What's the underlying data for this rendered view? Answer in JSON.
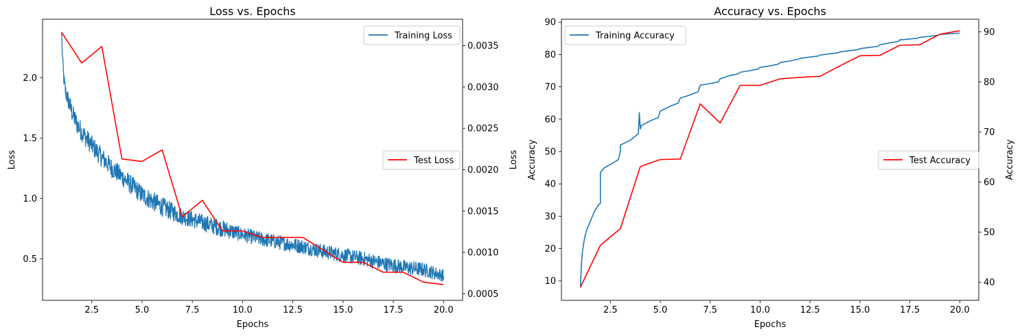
{
  "chart_data": [
    {
      "type": "line",
      "title": "Loss vs. Epochs",
      "xlabel": "Epochs",
      "ylabel": "Loss",
      "ylabel_right": "Loss",
      "xlim": [
        0.05,
        20.95
      ],
      "ylim": [
        0.155,
        2.485
      ],
      "ylim_right": [
        0.00042,
        0.00382
      ],
      "x_ticks": [
        2.5,
        5.0,
        7.5,
        10.0,
        12.5,
        15.0,
        17.5,
        20.0
      ],
      "x_tick_labels": [
        "2.5",
        "5.0",
        "7.5",
        "10.0",
        "12.5",
        "15.0",
        "17.5",
        "20.0"
      ],
      "y_ticks": [
        0.5,
        1.0,
        1.5,
        2.0
      ],
      "y_tick_labels": [
        "0.5",
        "1.0",
        "1.5",
        "2.0"
      ],
      "y_ticks_right": [
        0.0005,
        0.001,
        0.0015,
        0.002,
        0.0025,
        0.003,
        0.0035
      ],
      "y_tick_labels_right": [
        "0.0005",
        "0.0010",
        "0.0015",
        "0.0020",
        "0.0025",
        "0.0030",
        "0.0035"
      ],
      "grid": false,
      "series": [
        {
          "name": "Training Loss",
          "axis": "left",
          "color": "#1f77b4",
          "legend_position": "upper right",
          "x": [
            1.0,
            1.02,
            1.05,
            1.1,
            1.2,
            1.35,
            1.5,
            1.75,
            2.0,
            2.5,
            3.0,
            3.5,
            4.0,
            5.0,
            6.0,
            7.0,
            8.0,
            9.0,
            10.0,
            11.0,
            12.0,
            13.0,
            14.0,
            15.0,
            16.0,
            17.0,
            18.0,
            19.0,
            20.0
          ],
          "values": [
            2.38,
            2.25,
            2.15,
            2.0,
            1.88,
            1.8,
            1.72,
            1.62,
            1.55,
            1.44,
            1.34,
            1.25,
            1.18,
            1.03,
            0.93,
            0.85,
            0.8,
            0.75,
            0.7,
            0.66,
            0.63,
            0.6,
            0.56,
            0.53,
            0.5,
            0.46,
            0.43,
            0.41,
            0.36
          ],
          "noise_amplitude": [
            0.0,
            0.04,
            0.05,
            0.06,
            0.07,
            0.08,
            0.08,
            0.08,
            0.08,
            0.08,
            0.08,
            0.08,
            0.08,
            0.08,
            0.08,
            0.07,
            0.07,
            0.07,
            0.06,
            0.06,
            0.06,
            0.06,
            0.06,
            0.06,
            0.06,
            0.06,
            0.06,
            0.06,
            0.05
          ]
        },
        {
          "name": "Test Loss",
          "axis": "right",
          "color": "#ff0000",
          "legend_position": "center right",
          "x": [
            1,
            2,
            3,
            4,
            5,
            6,
            7,
            8,
            9,
            10,
            11,
            12,
            13,
            14,
            15,
            16,
            17,
            18,
            19,
            20
          ],
          "values": [
            0.00366,
            0.00329,
            0.00349,
            0.00213,
            0.0021,
            0.00224,
            0.00143,
            0.00163,
            0.00126,
            0.00126,
            0.00118,
            0.00118,
            0.00118,
            0.00103,
            0.00088,
            0.00088,
            0.00076,
            0.00076,
            0.00064,
            0.00061
          ]
        }
      ]
    },
    {
      "type": "line",
      "title": "Accuracy vs. Epochs",
      "xlabel": "Epochs",
      "ylabel": "Accuracy",
      "ylabel_right": "Accuracy",
      "xlim": [
        0.05,
        20.95
      ],
      "ylim": [
        4.0,
        90.9
      ],
      "ylim_right": [
        36.4,
        92.5
      ],
      "x_ticks": [
        2.5,
        5.0,
        7.5,
        10.0,
        12.5,
        15.0,
        17.5,
        20.0
      ],
      "x_tick_labels": [
        "2.5",
        "5.0",
        "7.5",
        "10.0",
        "12.5",
        "15.0",
        "17.5",
        "20.0"
      ],
      "y_ticks": [
        10,
        20,
        30,
        40,
        50,
        60,
        70,
        80,
        90
      ],
      "y_tick_labels": [
        "10",
        "20",
        "30",
        "40",
        "50",
        "60",
        "70",
        "80",
        "90"
      ],
      "y_ticks_right": [
        40,
        50,
        60,
        70,
        80,
        90
      ],
      "y_tick_labels_right": [
        "40",
        "50",
        "60",
        "70",
        "80",
        "90"
      ],
      "grid": false,
      "series": [
        {
          "name": "Training Accuracy",
          "axis": "left",
          "color": "#1f77b4",
          "legend_position": "upper left",
          "x": [
            1.0,
            1.02,
            1.05,
            1.1,
            1.2,
            1.3,
            1.5,
            1.7,
            1.9,
            2.0,
            2.0,
            2.2,
            2.5,
            2.9,
            3.0,
            3.0,
            3.5,
            3.9,
            3.95,
            4.0,
            4.05,
            4.5,
            4.9,
            5.0,
            5.5,
            5.9,
            6.0,
            6.5,
            6.9,
            7.0,
            7.5,
            7.9,
            8.0,
            8.5,
            8.9,
            9.0,
            9.5,
            9.9,
            10.0,
            10.5,
            10.9,
            11.0,
            11.5,
            11.9,
            12.0,
            12.5,
            12.9,
            13.0,
            13.5,
            13.9,
            14.0,
            14.5,
            14.9,
            15.0,
            15.5,
            15.9,
            16.0,
            16.5,
            16.9,
            17.0,
            17.5,
            17.9,
            18.0,
            18.5,
            18.9,
            19.0,
            19.5,
            20.0
          ],
          "values": [
            8.0,
            11.0,
            15.0,
            19.0,
            23.0,
            25.5,
            28.5,
            31.5,
            33.5,
            34.0,
            43.5,
            45.0,
            46.0,
            47.5,
            50.0,
            52.0,
            53.5,
            55.5,
            62.0,
            57.0,
            58.0,
            59.5,
            60.5,
            62.5,
            64.0,
            65.0,
            66.5,
            67.5,
            68.5,
            70.5,
            71.0,
            71.5,
            72.5,
            73.5,
            74.0,
            74.5,
            75.0,
            75.5,
            76.0,
            76.5,
            77.0,
            77.5,
            78.0,
            78.5,
            78.8,
            79.2,
            79.5,
            79.8,
            80.2,
            80.5,
            80.8,
            81.2,
            81.5,
            81.8,
            82.2,
            82.5,
            83.0,
            83.6,
            84.0,
            84.5,
            84.8,
            85.0,
            85.3,
            85.6,
            85.9,
            86.2,
            86.4,
            86.6
          ]
        },
        {
          "name": "Test Accuracy",
          "axis": "right",
          "color": "#ff0000",
          "legend_position": "center right",
          "x": [
            1,
            2,
            3,
            4,
            5,
            6,
            7,
            8,
            9,
            10,
            11,
            12,
            13,
            14,
            15,
            16,
            17,
            18,
            19,
            20
          ],
          "values": [
            39.0,
            47.4,
            50.7,
            63.1,
            64.5,
            64.6,
            75.6,
            71.8,
            79.3,
            79.3,
            80.6,
            80.9,
            81.1,
            83.2,
            85.2,
            85.3,
            87.3,
            87.4,
            89.5,
            90.2
          ]
        }
      ]
    }
  ]
}
